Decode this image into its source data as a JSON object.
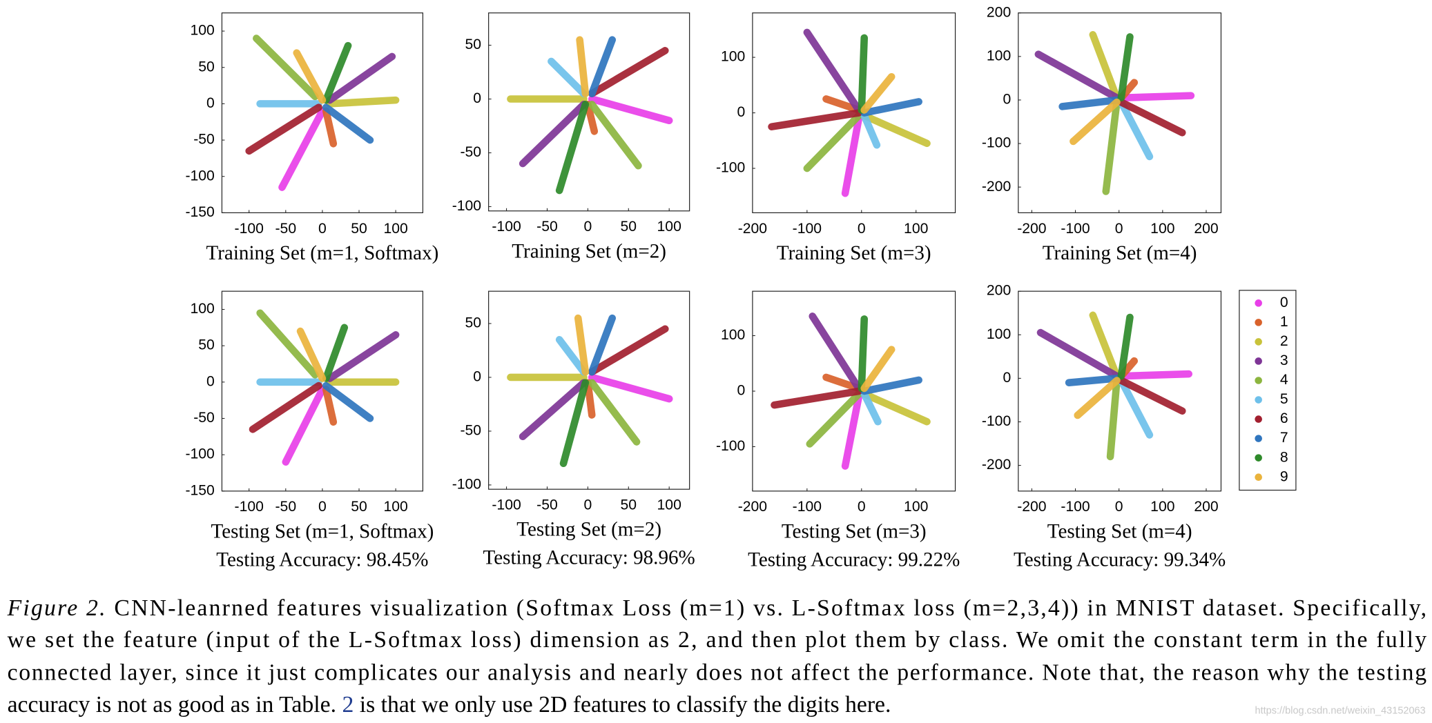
{
  "chart_data": [
    {
      "type": "scatter",
      "xlabel": "Training Set (m=1, Softmax)",
      "xlim": [
        -137,
        137
      ],
      "ylim": [
        -150,
        125
      ],
      "xticks": [
        -100,
        -50,
        0,
        50,
        100
      ],
      "yticks": [
        -150,
        -100,
        -50,
        0,
        50,
        100
      ],
      "series": [
        {
          "color": "#e83fe8",
          "x": [
            0,
            -55
          ],
          "y": [
            -10,
            -115
          ]
        },
        {
          "color": "#d9622b",
          "x": [
            5,
            15
          ],
          "y": [
            -10,
            -55
          ]
        },
        {
          "color": "#c8c23a",
          "x": [
            10,
            100
          ],
          "y": [
            0,
            5
          ]
        },
        {
          "color": "#7e3596",
          "x": [
            10,
            95
          ],
          "y": [
            5,
            65
          ]
        },
        {
          "color": "#8cb53f",
          "x": [
            -10,
            -90
          ],
          "y": [
            10,
            90
          ]
        },
        {
          "color": "#6ec0ea",
          "x": [
            -5,
            -85
          ],
          "y": [
            0,
            0
          ]
        },
        {
          "color": "#a21f2f",
          "x": [
            -5,
            -100
          ],
          "y": [
            -5,
            -65
          ]
        },
        {
          "color": "#2f75be",
          "x": [
            5,
            65
          ],
          "y": [
            -5,
            -50
          ]
        },
        {
          "color": "#2e8a2a",
          "x": [
            5,
            35
          ],
          "y": [
            5,
            80
          ]
        },
        {
          "color": "#eab33c",
          "x": [
            0,
            -35
          ],
          "y": [
            5,
            70
          ]
        }
      ]
    },
    {
      "type": "scatter",
      "xlabel": "Training Set (m=2)",
      "xlim": [
        -122,
        125
      ],
      "ylim": [
        -104,
        80
      ],
      "xticks": [
        -100,
        -50,
        0,
        50,
        100
      ],
      "yticks": [
        -100,
        -50,
        0,
        50
      ],
      "series": [
        {
          "color": "#e83fe8",
          "x": [
            5,
            100
          ],
          "y": [
            0,
            -20
          ]
        },
        {
          "color": "#d9622b",
          "x": [
            0,
            8
          ],
          "y": [
            -5,
            -30
          ]
        },
        {
          "color": "#c8c23a",
          "x": [
            -5,
            -95
          ],
          "y": [
            0,
            0
          ]
        },
        {
          "color": "#7e3596",
          "x": [
            -5,
            -80
          ],
          "y": [
            -5,
            -60
          ]
        },
        {
          "color": "#8cb53f",
          "x": [
            5,
            62
          ],
          "y": [
            -5,
            -62
          ]
        },
        {
          "color": "#6ec0ea",
          "x": [
            -5,
            -45
          ],
          "y": [
            5,
            35
          ]
        },
        {
          "color": "#a21f2f",
          "x": [
            5,
            95
          ],
          "y": [
            5,
            45
          ]
        },
        {
          "color": "#2f75be",
          "x": [
            5,
            30
          ],
          "y": [
            5,
            55
          ]
        },
        {
          "color": "#2e8a2a",
          "x": [
            -3,
            -35
          ],
          "y": [
            -5,
            -85
          ]
        },
        {
          "color": "#eab33c",
          "x": [
            -3,
            -10
          ],
          "y": [
            5,
            55
          ]
        }
      ]
    },
    {
      "type": "scatter",
      "xlabel": "Training Set (m=3)",
      "xlim": [
        -200,
        172
      ],
      "ylim": [
        -180,
        180
      ],
      "xticks": [
        -200,
        -100,
        0,
        100
      ],
      "yticks": [
        -100,
        0,
        100
      ],
      "series": [
        {
          "color": "#e83fe8",
          "x": [
            -5,
            -30
          ],
          "y": [
            -10,
            -145
          ]
        },
        {
          "color": "#d9622b",
          "x": [
            -5,
            -65
          ],
          "y": [
            5,
            25
          ]
        },
        {
          "color": "#c8c23a",
          "x": [
            5,
            120
          ],
          "y": [
            -5,
            -55
          ]
        },
        {
          "color": "#7e3596",
          "x": [
            -5,
            -100
          ],
          "y": [
            5,
            145
          ]
        },
        {
          "color": "#8cb53f",
          "x": [
            -5,
            -100
          ],
          "y": [
            -5,
            -100
          ]
        },
        {
          "color": "#6ec0ea",
          "x": [
            5,
            28
          ],
          "y": [
            -5,
            -58
          ]
        },
        {
          "color": "#a21f2f",
          "x": [
            -5,
            -165
          ],
          "y": [
            0,
            -25
          ]
        },
        {
          "color": "#2f75be",
          "x": [
            5,
            105
          ],
          "y": [
            0,
            20
          ]
        },
        {
          "color": "#2e8a2a",
          "x": [
            0,
            5
          ],
          "y": [
            5,
            135
          ]
        },
        {
          "color": "#eab33c",
          "x": [
            5,
            55
          ],
          "y": [
            5,
            65
          ]
        }
      ]
    },
    {
      "type": "scatter",
      "xlabel": "Training Set (m=4)",
      "xlim": [
        -231,
        234
      ],
      "ylim": [
        -259,
        200
      ],
      "xticks": [
        -200,
        -100,
        0,
        100,
        200
      ],
      "yticks": [
        -200,
        -100,
        0,
        100,
        200
      ],
      "series": [
        {
          "color": "#e83fe8",
          "x": [
            5,
            165
          ],
          "y": [
            5,
            10
          ]
        },
        {
          "color": "#d9622b",
          "x": [
            5,
            35
          ],
          "y": [
            5,
            40
          ]
        },
        {
          "color": "#c8c23a",
          "x": [
            -5,
            -60
          ],
          "y": [
            5,
            150
          ]
        },
        {
          "color": "#7e3596",
          "x": [
            -5,
            -185
          ],
          "y": [
            5,
            105
          ]
        },
        {
          "color": "#8cb53f",
          "x": [
            -5,
            -30
          ],
          "y": [
            -5,
            -210
          ]
        },
        {
          "color": "#6ec0ea",
          "x": [
            5,
            70
          ],
          "y": [
            -5,
            -130
          ]
        },
        {
          "color": "#a21f2f",
          "x": [
            5,
            145
          ],
          "y": [
            -5,
            -75
          ]
        },
        {
          "color": "#2f75be",
          "x": [
            -5,
            -130
          ],
          "y": [
            0,
            -15
          ]
        },
        {
          "color": "#2e8a2a",
          "x": [
            5,
            25
          ],
          "y": [
            5,
            145
          ]
        },
        {
          "color": "#eab33c",
          "x": [
            -5,
            -105
          ],
          "y": [
            -5,
            -95
          ]
        }
      ]
    },
    {
      "type": "scatter",
      "xlabel": "Testing Set (m=1, Softmax)",
      "annotation": "Testing Accuracy: 98.45%",
      "xlim": [
        -137,
        137
      ],
      "ylim": [
        -150,
        125
      ],
      "xticks": [
        -100,
        -50,
        0,
        50,
        100
      ],
      "yticks": [
        -150,
        -100,
        -50,
        0,
        50,
        100
      ],
      "series": [
        {
          "color": "#e83fe8",
          "x": [
            0,
            -50
          ],
          "y": [
            -10,
            -110
          ]
        },
        {
          "color": "#d9622b",
          "x": [
            5,
            15
          ],
          "y": [
            -10,
            -55
          ]
        },
        {
          "color": "#c8c23a",
          "x": [
            10,
            100
          ],
          "y": [
            0,
            0
          ]
        },
        {
          "color": "#7e3596",
          "x": [
            10,
            100
          ],
          "y": [
            5,
            65
          ]
        },
        {
          "color": "#8cb53f",
          "x": [
            -10,
            -85
          ],
          "y": [
            10,
            95
          ]
        },
        {
          "color": "#6ec0ea",
          "x": [
            -5,
            -85
          ],
          "y": [
            0,
            0
          ]
        },
        {
          "color": "#a21f2f",
          "x": [
            -5,
            -95
          ],
          "y": [
            -5,
            -65
          ]
        },
        {
          "color": "#2f75be",
          "x": [
            5,
            65
          ],
          "y": [
            -5,
            -50
          ]
        },
        {
          "color": "#2e8a2a",
          "x": [
            5,
            30
          ],
          "y": [
            5,
            75
          ]
        },
        {
          "color": "#eab33c",
          "x": [
            0,
            -30
          ],
          "y": [
            5,
            70
          ]
        }
      ]
    },
    {
      "type": "scatter",
      "xlabel": "Testing Set (m=2)",
      "annotation": "Testing Accuracy: 98.96%",
      "xlim": [
        -122,
        125
      ],
      "ylim": [
        -104,
        80
      ],
      "xticks": [
        -100,
        -50,
        0,
        50,
        100
      ],
      "yticks": [
        -100,
        -50,
        0,
        50
      ],
      "series": [
        {
          "color": "#e83fe8",
          "x": [
            5,
            100
          ],
          "y": [
            0,
            -20
          ]
        },
        {
          "color": "#d9622b",
          "x": [
            0,
            5
          ],
          "y": [
            -5,
            -35
          ]
        },
        {
          "color": "#c8c23a",
          "x": [
            -5,
            -95
          ],
          "y": [
            0,
            0
          ]
        },
        {
          "color": "#7e3596",
          "x": [
            -5,
            -80
          ],
          "y": [
            -5,
            -55
          ]
        },
        {
          "color": "#8cb53f",
          "x": [
            5,
            60
          ],
          "y": [
            -5,
            -60
          ]
        },
        {
          "color": "#6ec0ea",
          "x": [
            -5,
            -35
          ],
          "y": [
            5,
            35
          ]
        },
        {
          "color": "#a21f2f",
          "x": [
            5,
            95
          ],
          "y": [
            5,
            45
          ]
        },
        {
          "color": "#2f75be",
          "x": [
            5,
            30
          ],
          "y": [
            5,
            55
          ]
        },
        {
          "color": "#2e8a2a",
          "x": [
            -3,
            -30
          ],
          "y": [
            -5,
            -80
          ]
        },
        {
          "color": "#eab33c",
          "x": [
            -3,
            -12
          ],
          "y": [
            5,
            55
          ]
        }
      ]
    },
    {
      "type": "scatter",
      "xlabel": "Testing Set (m=3)",
      "annotation": "Testing Accuracy: 99.22%",
      "xlim": [
        -200,
        172
      ],
      "ylim": [
        -180,
        180
      ],
      "xticks": [
        -200,
        -100,
        0,
        100
      ],
      "yticks": [
        -100,
        0,
        100
      ],
      "series": [
        {
          "color": "#e83fe8",
          "x": [
            -5,
            -30
          ],
          "y": [
            -10,
            -135
          ]
        },
        {
          "color": "#d9622b",
          "x": [
            -5,
            -65
          ],
          "y": [
            5,
            25
          ]
        },
        {
          "color": "#c8c23a",
          "x": [
            5,
            120
          ],
          "y": [
            -5,
            -55
          ]
        },
        {
          "color": "#7e3596",
          "x": [
            -5,
            -90
          ],
          "y": [
            5,
            135
          ]
        },
        {
          "color": "#8cb53f",
          "x": [
            -5,
            -95
          ],
          "y": [
            -5,
            -95
          ]
        },
        {
          "color": "#6ec0ea",
          "x": [
            5,
            30
          ],
          "y": [
            -5,
            -55
          ]
        },
        {
          "color": "#a21f2f",
          "x": [
            -5,
            -160
          ],
          "y": [
            0,
            -25
          ]
        },
        {
          "color": "#2f75be",
          "x": [
            5,
            105
          ],
          "y": [
            0,
            20
          ]
        },
        {
          "color": "#2e8a2a",
          "x": [
            0,
            5
          ],
          "y": [
            5,
            130
          ]
        },
        {
          "color": "#eab33c",
          "x": [
            5,
            55
          ],
          "y": [
            5,
            75
          ]
        }
      ]
    },
    {
      "type": "scatter",
      "xlabel": "Testing Set (m=4)",
      "annotation": "Testing Accuracy: 99.34%",
      "xlim": [
        -231,
        234
      ],
      "ylim": [
        -259,
        200
      ],
      "xticks": [
        -200,
        -100,
        0,
        100,
        200
      ],
      "yticks": [
        -200,
        -100,
        0,
        100,
        200
      ],
      "legend": "right",
      "series": [
        {
          "name": "0",
          "color": "#e83fe8",
          "x": [
            5,
            160
          ],
          "y": [
            5,
            10
          ]
        },
        {
          "name": "1",
          "color": "#d9622b",
          "x": [
            5,
            35
          ],
          "y": [
            5,
            40
          ]
        },
        {
          "name": "2",
          "color": "#c8c23a",
          "x": [
            -5,
            -60
          ],
          "y": [
            5,
            145
          ]
        },
        {
          "name": "3",
          "color": "#7e3596",
          "x": [
            -5,
            -180
          ],
          "y": [
            5,
            105
          ]
        },
        {
          "name": "4",
          "color": "#8cb53f",
          "x": [
            -5,
            -20
          ],
          "y": [
            -5,
            -180
          ]
        },
        {
          "name": "5",
          "color": "#6ec0ea",
          "x": [
            5,
            70
          ],
          "y": [
            -5,
            -130
          ]
        },
        {
          "name": "6",
          "color": "#a21f2f",
          "x": [
            5,
            145
          ],
          "y": [
            -5,
            -75
          ]
        },
        {
          "name": "7",
          "color": "#2f75be",
          "x": [
            -5,
            -115
          ],
          "y": [
            0,
            -10
          ]
        },
        {
          "name": "8",
          "color": "#2e8a2a",
          "x": [
            5,
            25
          ],
          "y": [
            5,
            140
          ]
        },
        {
          "name": "9",
          "color": "#eab33c",
          "x": [
            -5,
            -95
          ],
          "y": [
            -5,
            -85
          ]
        }
      ]
    }
  ],
  "caption": {
    "label": "Figure 2.",
    "lines": [
      "CNN-leanrned features visualization (Softmax Loss (m=1) vs.  L-Softmax loss (m=2,3,4)) in MNIST dataset.  Specifically,",
      "we set the feature (input of the L-Softmax loss) dimension as 2, and then plot them by class.  We omit the constant term in the fully",
      "connected layer, since it just complicates our analysis and nearly does not affect the performance. Note that, the reason why the testing"
    ],
    "last_line": [
      "accuracy is not as good as in Table. ",
      "2",
      " is that we only use 2D features to classify the digits here."
    ]
  },
  "watermark": "https://blog.csdn.net/weixin_43152063"
}
